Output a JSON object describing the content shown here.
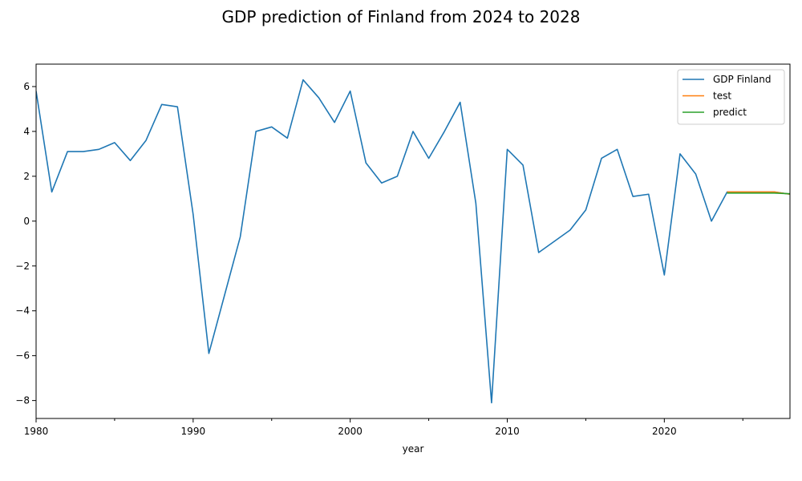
{
  "chart_data": {
    "type": "line",
    "title": "GDP prediction of Finland from 2024 to 2028",
    "xlabel": "year",
    "ylabel": "",
    "xlim": [
      1980,
      2028
    ],
    "ylim": [
      -8.8,
      7.0
    ],
    "x_ticks_major": [
      1980,
      1990,
      2000,
      2010,
      2020
    ],
    "x_ticks_minor": [
      1985,
      1995,
      2005,
      2015,
      2025
    ],
    "y_ticks": [
      -8,
      -6,
      -4,
      -2,
      0,
      2,
      4,
      6
    ],
    "legend_position": "top-right",
    "grid": false,
    "series": [
      {
        "name": "GDP Finland",
        "color": "#1f77b4",
        "x": [
          1980,
          1981,
          1982,
          1983,
          1984,
          1985,
          1986,
          1987,
          1988,
          1989,
          1990,
          1991,
          1992,
          1993,
          1994,
          1995,
          1996,
          1997,
          1998,
          1999,
          2000,
          2001,
          2002,
          2003,
          2004,
          2005,
          2006,
          2007,
          2008,
          2009,
          2010,
          2011,
          2012,
          2013,
          2014,
          2015,
          2016,
          2017,
          2018,
          2019,
          2020,
          2021,
          2022,
          2023,
          2024,
          2025,
          2026,
          2027,
          2028
        ],
        "y": [
          5.8,
          1.3,
          3.1,
          3.1,
          3.2,
          3.5,
          2.7,
          3.6,
          5.2,
          5.1,
          0.3,
          -5.9,
          -3.3,
          -0.7,
          4.0,
          4.2,
          3.7,
          6.3,
          5.5,
          4.4,
          5.8,
          2.6,
          1.7,
          2.0,
          4.0,
          2.8,
          4.0,
          5.3,
          0.8,
          -8.1,
          3.2,
          2.5,
          -1.4,
          -0.9,
          -0.4,
          0.5,
          2.8,
          3.2,
          1.1,
          1.2,
          -2.4,
          3.0,
          2.1,
          0.0,
          1.3,
          1.3,
          1.3,
          1.3,
          1.2
        ]
      },
      {
        "name": "test",
        "color": "#ff7f0e",
        "x": [
          2024,
          2025,
          2026,
          2027,
          2028
        ],
        "y": [
          1.3,
          1.3,
          1.3,
          1.3,
          1.2
        ]
      },
      {
        "name": "predict",
        "color": "#2ca02c",
        "x": [
          2024,
          2025,
          2026,
          2027,
          2028
        ],
        "y": [
          1.25,
          1.25,
          1.25,
          1.25,
          1.22
        ]
      }
    ]
  }
}
